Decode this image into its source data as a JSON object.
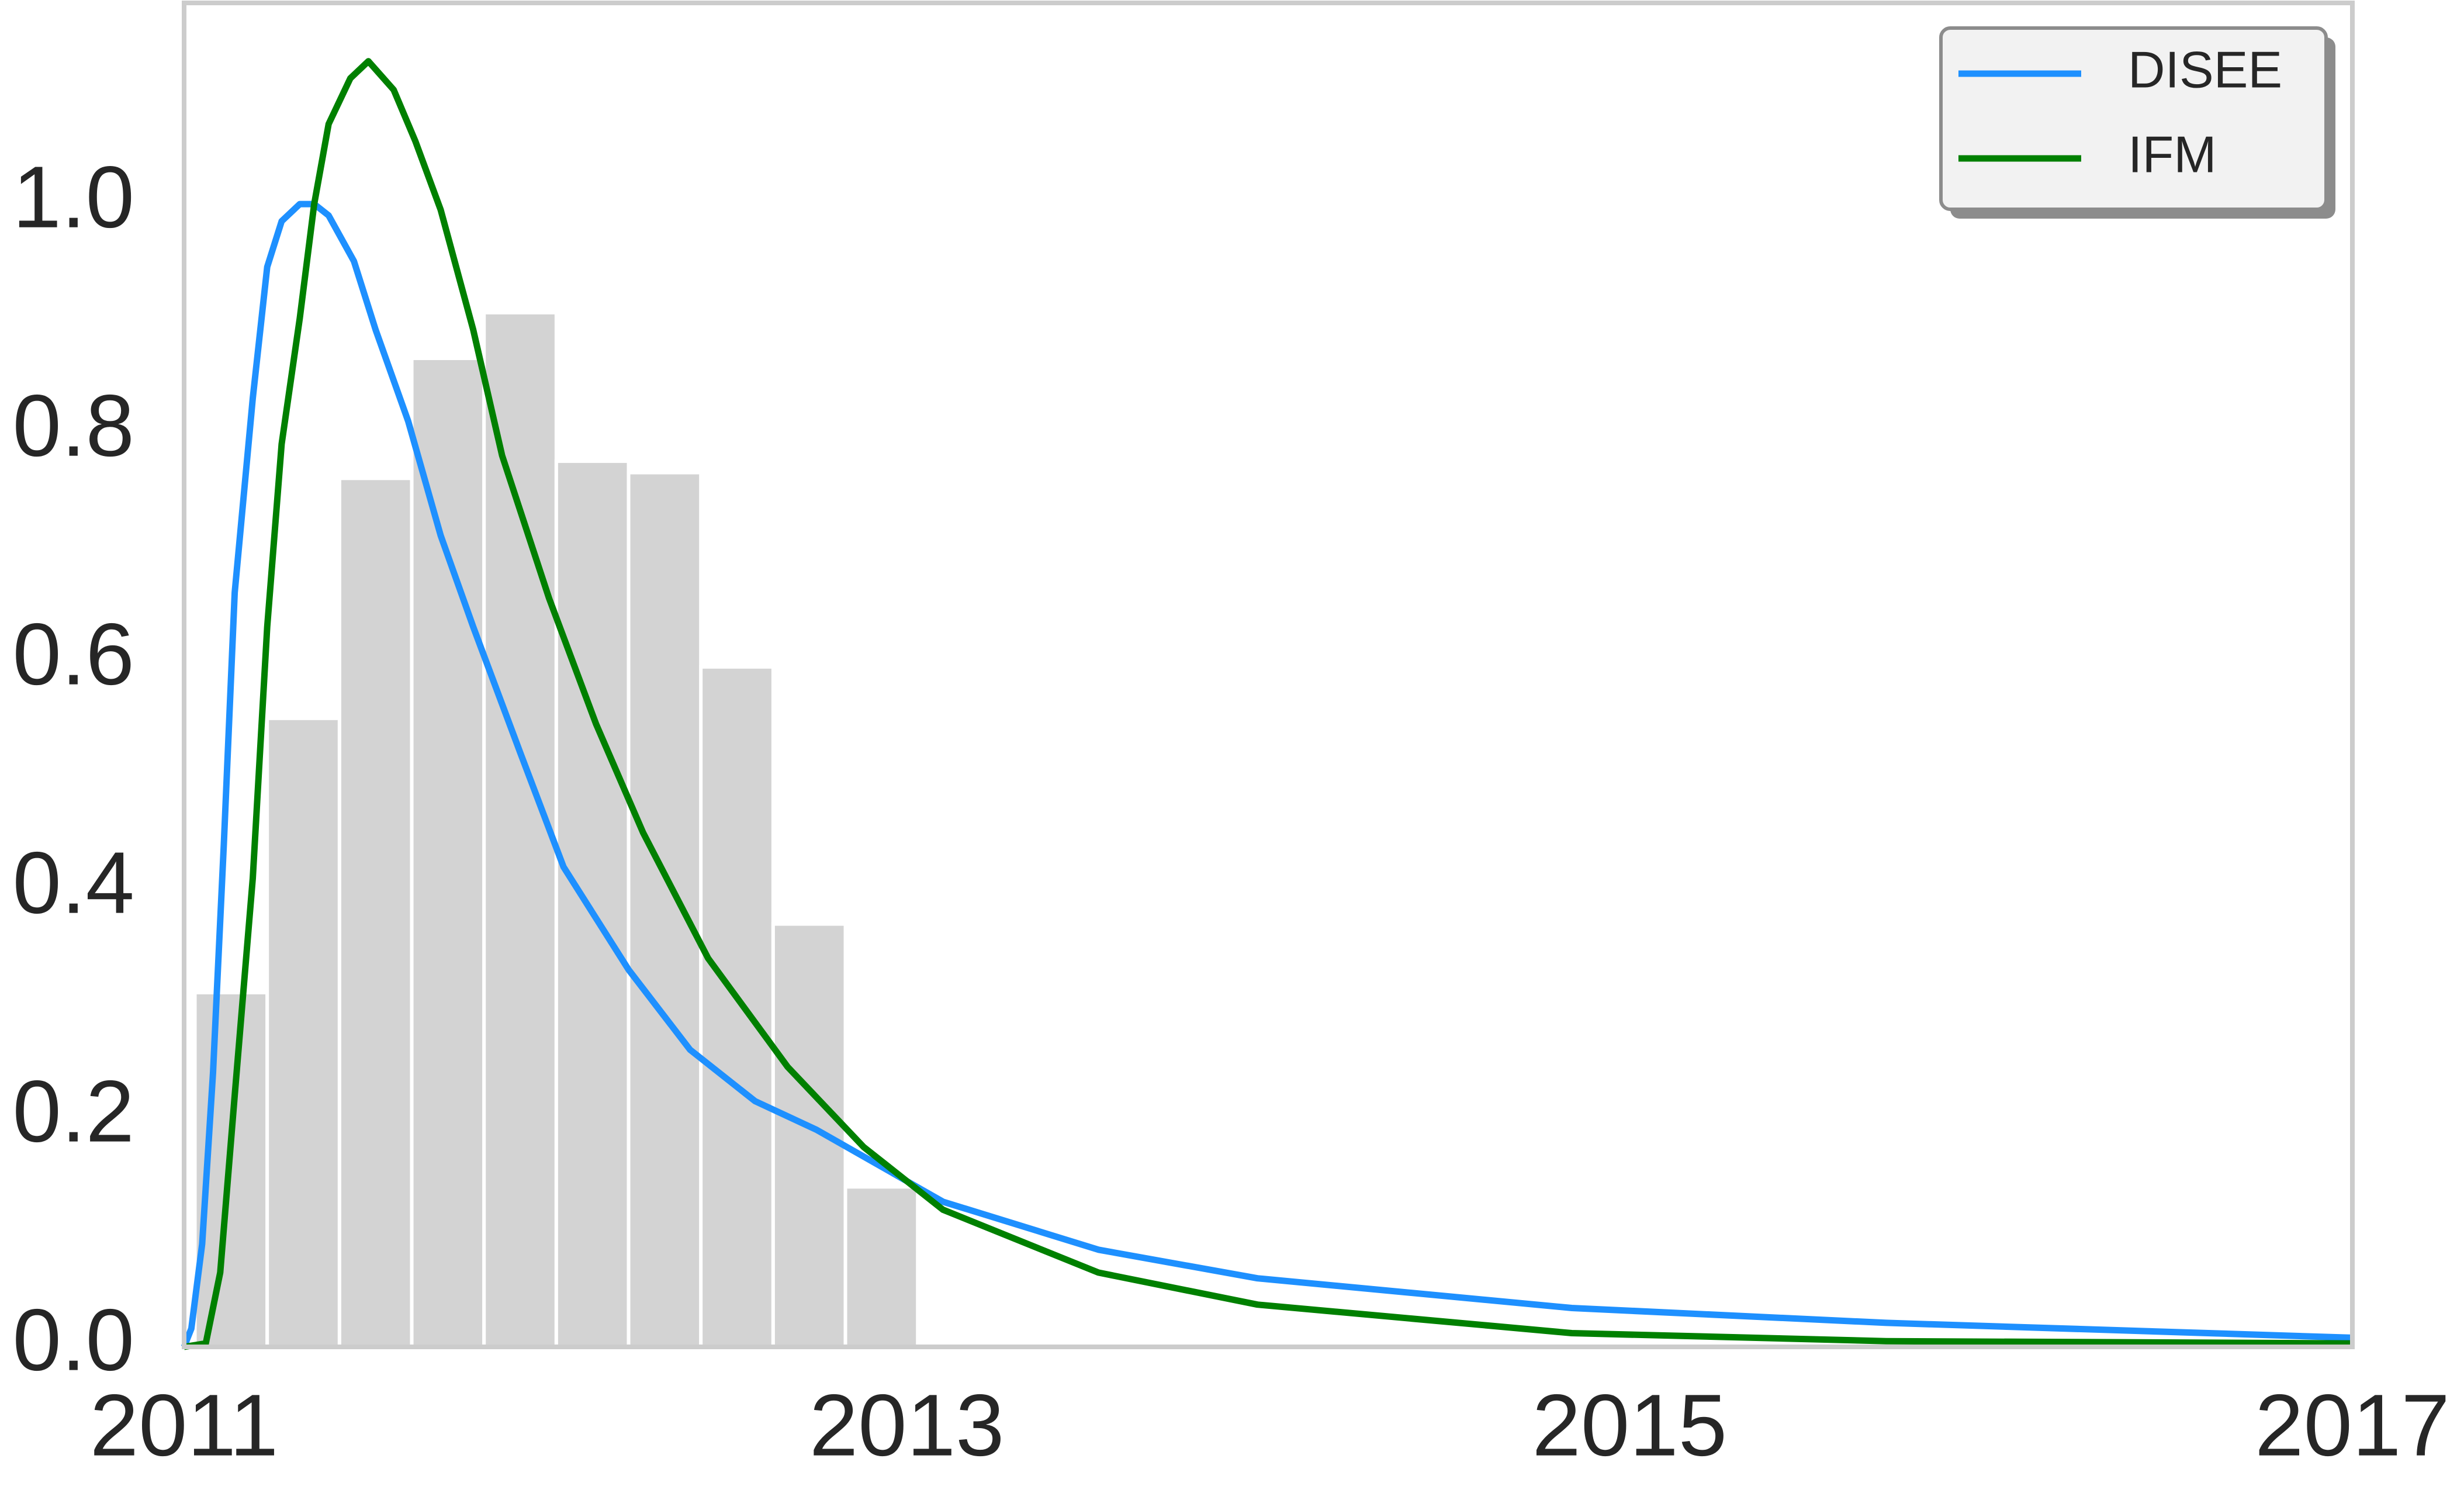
{
  "chart_data": {
    "type": "histogram",
    "bins": [
      2011.03,
      2011.23,
      2011.43,
      2011.63,
      2011.83,
      2012.03,
      2012.23,
      2012.43,
      2012.63,
      2012.83,
      2013.03
    ],
    "counts": [
      0.31,
      0.55,
      0.76,
      0.865,
      0.905,
      0.775,
      0.765,
      0.595,
      0.37,
      0.14
    ],
    "bar_color": "#d3d3d3",
    "series": [
      {
        "name": "DISEE",
        "color": "#1e90ff",
        "x": [
          2011.0,
          2011.02,
          2011.05,
          2011.08,
          2011.11,
          2011.14,
          2011.19,
          2011.23,
          2011.27,
          2011.32,
          2011.36,
          2011.4,
          2011.47,
          2011.53,
          2011.62,
          2011.71,
          2011.8,
          2011.93,
          2012.05,
          2012.23,
          2012.4,
          2012.58,
          2012.75,
          2013.1,
          2013.53,
          2013.97,
          2014.84,
          2015.71,
          2017.0
        ],
        "values": [
          0,
          0.016,
          0.09,
          0.24,
          0.44,
          0.66,
          0.83,
          0.945,
          0.985,
          1.0,
          1.0,
          0.99,
          0.95,
          0.89,
          0.81,
          0.71,
          0.63,
          0.52,
          0.42,
          0.33,
          0.26,
          0.215,
          0.19,
          0.127,
          0.085,
          0.06,
          0.034,
          0.021,
          0.008
        ]
      },
      {
        "name": "IFM",
        "color": "#008000",
        "x": [
          2011.0,
          2011.06,
          2011.1,
          2011.14,
          2011.19,
          2011.23,
          2011.27,
          2011.32,
          2011.36,
          2011.4,
          2011.46,
          2011.51,
          2011.58,
          2011.64,
          2011.71,
          2011.8,
          2011.88,
          2012.01,
          2012.14,
          2012.27,
          2012.45,
          2012.67,
          2012.88,
          2013.1,
          2013.53,
          2013.97,
          2014.84,
          2015.71,
          2017.0
        ],
        "values": [
          0,
          0.003,
          0.065,
          0.22,
          0.41,
          0.63,
          0.79,
          0.9,
          1.0,
          1.07,
          1.11,
          1.125,
          1.1,
          1.055,
          0.995,
          0.89,
          0.78,
          0.655,
          0.545,
          0.45,
          0.34,
          0.245,
          0.175,
          0.12,
          0.065,
          0.037,
          0.012,
          0.005,
          0.003
        ]
      }
    ],
    "xlim": [
      2011,
      2017
    ],
    "xticks": [
      2011,
      2013,
      2015,
      2017
    ],
    "ylim": [
      0,
      1.176
    ],
    "yticks": [
      {
        "value": 0,
        "label": "0.0"
      },
      0.2,
      0.4,
      0.6,
      0.8,
      {
        "value": 1,
        "label": "1.0"
      }
    ],
    "legend": "upper right"
  }
}
